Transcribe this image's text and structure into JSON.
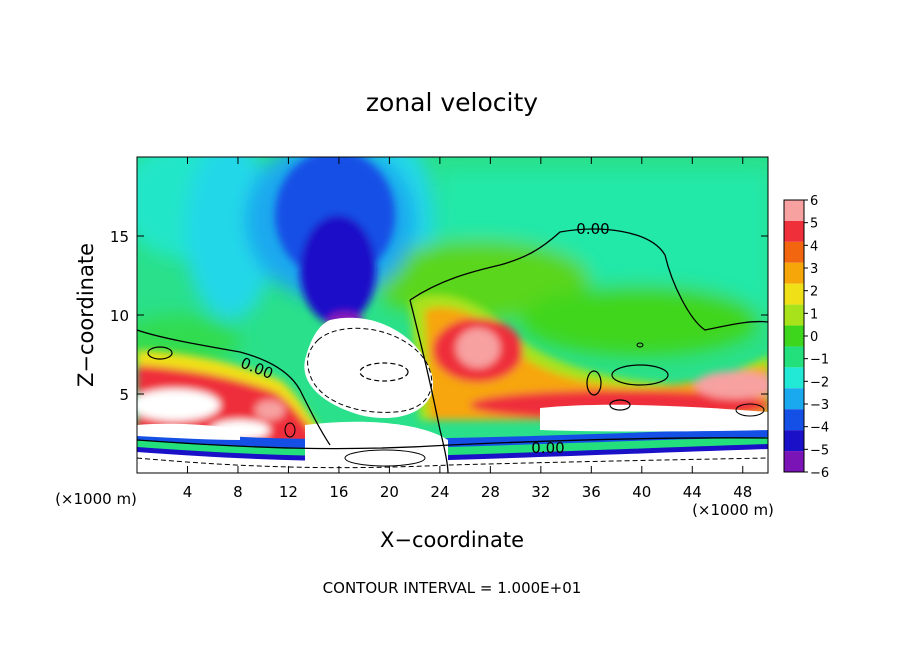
{
  "chart_data": {
    "type": "heatmap",
    "title": "zonal velocity",
    "xlabel": "X−coordinate",
    "ylabel": "Z−coordinate",
    "x_unit_left": "(×1000 m)",
    "x_unit_right": "(×1000 m)",
    "footer": "CONTOUR INTERVAL = 1.000E+01",
    "xlim": [
      0,
      50
    ],
    "ylim": [
      0,
      20
    ],
    "x_ticks": [
      4,
      8,
      12,
      16,
      20,
      24,
      28,
      32,
      36,
      40,
      44,
      48
    ],
    "y_ticks": [
      5,
      10,
      15
    ],
    "colorbar": {
      "levels": [
        6,
        5,
        4,
        3,
        2,
        1,
        0,
        -1,
        -2,
        -3,
        -4,
        -5,
        -6
      ],
      "colors": [
        "#f7a1a1",
        "#ef2f3a",
        "#f2660f",
        "#f7a60a",
        "#f0e018",
        "#a8e21a",
        "#3ed61c",
        "#24e07c",
        "#22e8d6",
        "#1aa8ee",
        "#1550e6",
        "#1a10c8",
        "#7a14b6"
      ]
    },
    "contour_labels": [
      {
        "text": "0.00",
        "x": 35.5,
        "z": 15.3
      },
      {
        "text": "0.00",
        "x": 9.5,
        "z": 6.5
      },
      {
        "text": "0.00",
        "x": 33,
        "z": 1.7
      }
    ]
  }
}
